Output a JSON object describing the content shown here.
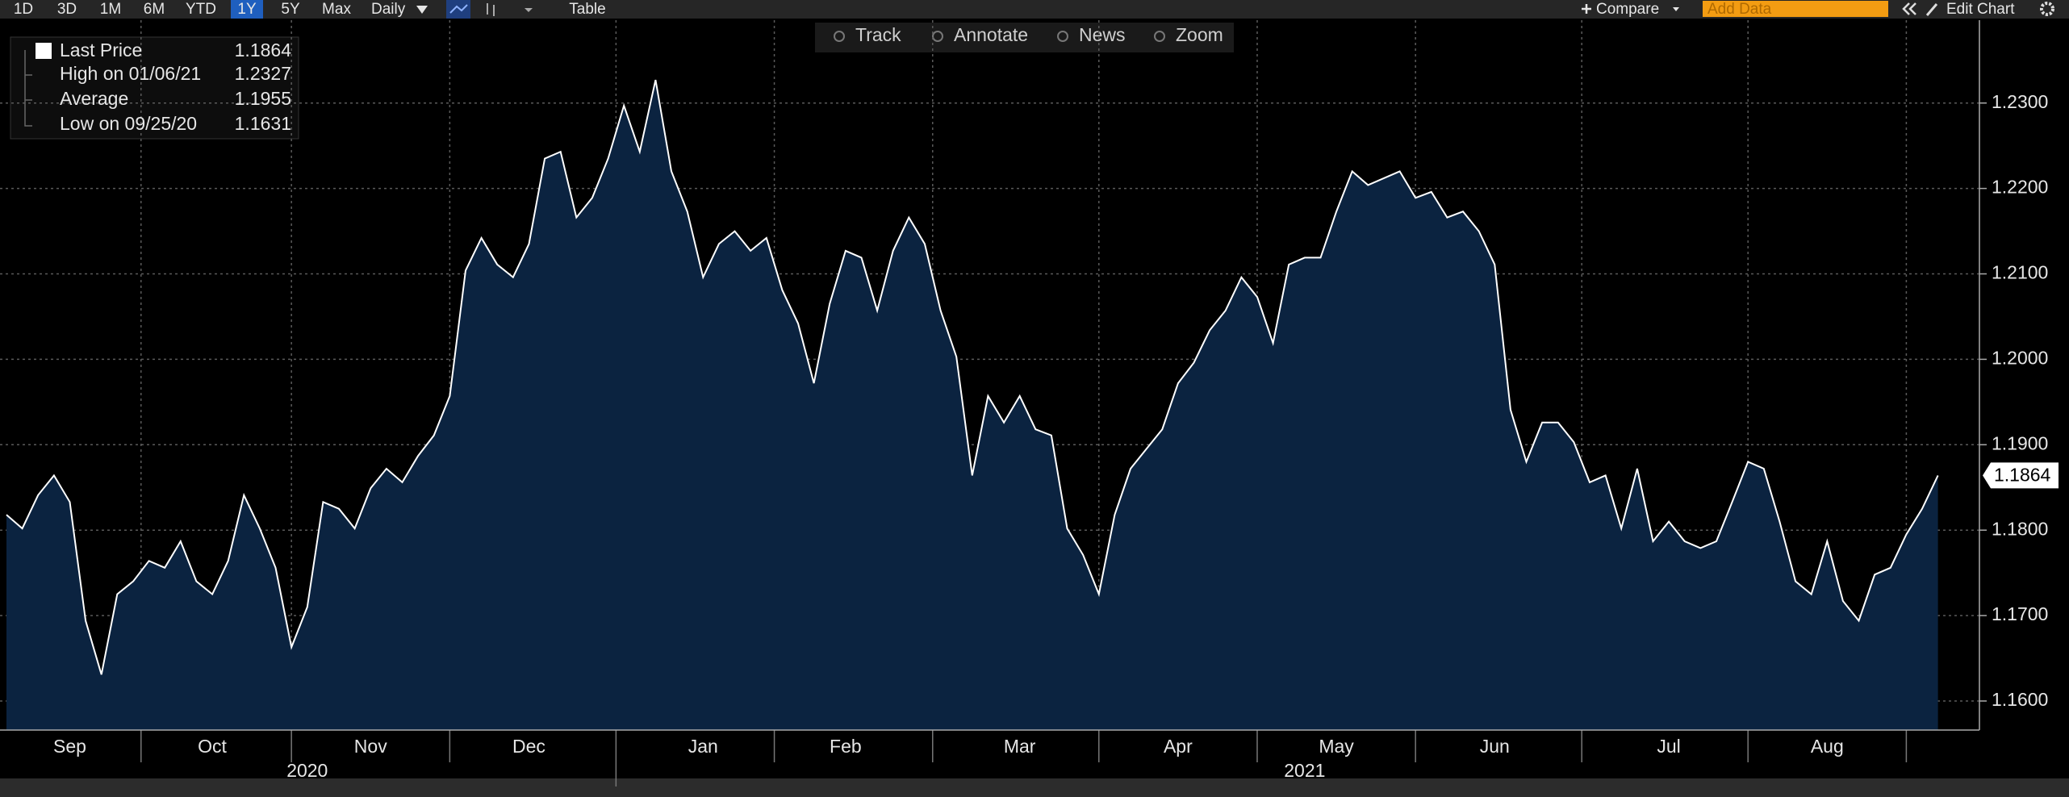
{
  "toolbar": {
    "ranges": [
      "1D",
      "3D",
      "1M",
      "6M",
      "YTD",
      "1Y",
      "5Y",
      "Max"
    ],
    "frequency": "Daily",
    "table": "Table",
    "compare": "Compare",
    "add_data": "Add Data",
    "edit_chart": "Edit Chart"
  },
  "chart_tools": [
    "Track",
    "Annotate",
    "News",
    "Zoom"
  ],
  "chart_data": {
    "type": "area",
    "last_price": 1.1864,
    "stats": [
      {
        "label": "High on 01/06/21",
        "value": 1.2327
      },
      {
        "label": "Average",
        "value": 1.1955
      },
      {
        "label": "Low on 09/25/20",
        "value": 1.1631
      }
    ],
    "categories": [
      null,
      null,
      null,
      null,
      "Sep",
      null,
      null,
      null,
      null,
      null,
      null,
      null,
      null,
      "Oct",
      null,
      null,
      null,
      null,
      null,
      null,
      null,
      null,
      null,
      "Nov",
      null,
      null,
      null,
      null,
      null,
      null,
      null,
      null,
      null,
      "Dec",
      null,
      null,
      null,
      null,
      null,
      null,
      null,
      null,
      null,
      null,
      "Jan",
      null,
      null,
      null,
      null,
      null,
      null,
      null,
      null,
      "Feb",
      null,
      null,
      null,
      null,
      null,
      null,
      null,
      null,
      null,
      null,
      "Mar",
      null,
      null,
      null,
      null,
      null,
      null,
      null,
      null,
      null,
      "Apr",
      null,
      null,
      null,
      null,
      null,
      null,
      null,
      null,
      null,
      "May",
      null,
      null,
      null,
      null,
      null,
      null,
      null,
      null,
      null,
      "Jun",
      null,
      null,
      null,
      null,
      null,
      null,
      null,
      null,
      null,
      null,
      "Jul",
      null,
      null,
      null,
      null,
      null,
      null,
      null,
      null,
      null,
      "Aug",
      null,
      null,
      null,
      null,
      null,
      null,
      null
    ],
    "year_labels": [
      {
        "value": 19,
        "label": "2020"
      },
      {
        "value": 82,
        "label": "2021"
      }
    ],
    "series": [
      {
        "name": "Last Price",
        "color": "#ffffff",
        "fill": "#0b2340",
        "values": [
          1.1818,
          1.1802,
          1.1841,
          1.1864,
          1.1833,
          1.1694,
          1.1631,
          1.1725,
          1.174,
          1.1764,
          1.1756,
          1.1787,
          1.174,
          1.1725,
          1.1764,
          1.1841,
          1.1802,
          1.1756,
          1.1663,
          1.171,
          1.1833,
          1.1825,
          1.1802,
          1.1849,
          1.1872,
          1.1856,
          1.1887,
          1.1911,
          1.1957,
          1.2104,
          1.2142,
          1.2111,
          1.2096,
          1.2135,
          1.2235,
          1.2243,
          1.2166,
          1.2189,
          1.2235,
          1.2297,
          1.2243,
          1.2327,
          1.222,
          1.2173,
          1.2096,
          1.2135,
          1.215,
          1.2127,
          1.2142,
          1.2081,
          1.2042,
          1.1972,
          1.2065,
          1.2127,
          1.2119,
          1.2057,
          1.2127,
          1.2166,
          1.2135,
          1.2057,
          1.2003,
          1.1864,
          1.1957,
          1.1926,
          1.1957,
          1.1918,
          1.1911,
          1.1802,
          1.1771,
          1.1725,
          1.1818,
          1.1872,
          1.1895,
          1.1918,
          1.1972,
          1.1996,
          1.2034,
          1.2057,
          1.2096,
          1.2073,
          1.2019,
          1.2111,
          1.2119,
          1.2119,
          1.2173,
          1.222,
          1.2204,
          1.2212,
          1.222,
          1.2189,
          1.2196,
          1.2166,
          1.2173,
          1.215,
          1.2111,
          1.1941,
          1.188,
          1.1926,
          1.1926,
          1.1903,
          1.1856,
          1.1864,
          1.1802,
          1.1872,
          1.1787,
          1.181,
          1.1787,
          1.1779,
          1.1787,
          1.1833,
          1.188,
          1.1872,
          1.181,
          1.174,
          1.1725,
          1.1787,
          1.1717,
          1.1694,
          1.1748,
          1.1756,
          1.1795,
          1.1825,
          1.1864
        ]
      }
    ],
    "ylim": [
      1.1566,
      1.2397
    ],
    "yticks": [
      {
        "value": 1.16,
        "label": "1.1600"
      },
      {
        "value": 1.17,
        "label": "1.1700"
      },
      {
        "value": 1.18,
        "label": "1.1800"
      },
      {
        "value": 1.19,
        "label": "1.1900"
      },
      {
        "value": 1.2,
        "label": "1.2000"
      },
      {
        "value": 1.21,
        "label": "1.2100"
      },
      {
        "value": 1.22,
        "label": "1.2200"
      },
      {
        "value": 1.23,
        "label": "1.2300"
      }
    ],
    "grid": true
  }
}
